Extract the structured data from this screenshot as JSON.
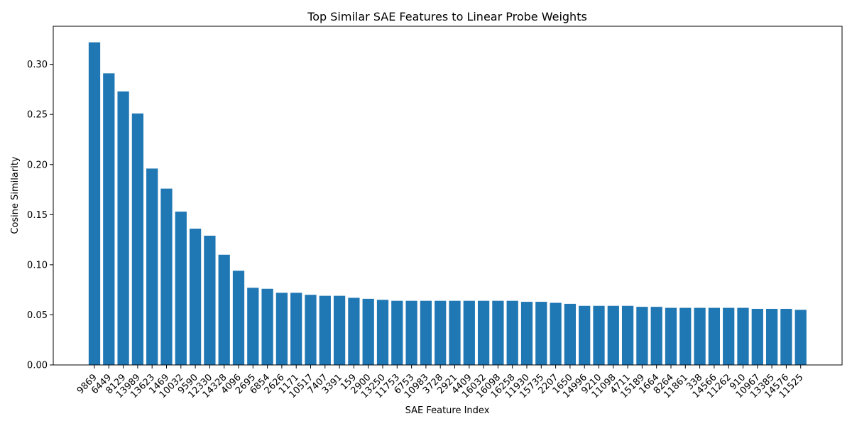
{
  "chart_data": {
    "type": "bar",
    "title": "Top Similar SAE Features to Linear Probe Weights",
    "xlabel": "SAE Feature Index",
    "ylabel": "Cosine Similarity",
    "ylim": [
      0,
      0.338
    ],
    "yticks": [
      "0.00",
      "0.05",
      "0.10",
      "0.15",
      "0.20",
      "0.25",
      "0.30"
    ],
    "grid": false,
    "bar_color": "#1f77b4",
    "categories": [
      "9869",
      "6449",
      "8129",
      "13989",
      "13623",
      "1469",
      "10032",
      "9590",
      "12330",
      "14328",
      "4096",
      "2695",
      "6854",
      "2626",
      "1171",
      "10517",
      "7407",
      "3391",
      "159",
      "2900",
      "13250",
      "11753",
      "6753",
      "10983",
      "3728",
      "2921",
      "4409",
      "16032",
      "16098",
      "16258",
      "11930",
      "15735",
      "2207",
      "1650",
      "14996",
      "9210",
      "11098",
      "4711",
      "15189",
      "1664",
      "8264",
      "11861",
      "338",
      "14566",
      "11262",
      "910",
      "10967",
      "13385",
      "14576",
      "11525"
    ],
    "values": [
      0.322,
      0.291,
      0.273,
      0.251,
      0.196,
      0.176,
      0.153,
      0.136,
      0.129,
      0.11,
      0.094,
      0.077,
      0.076,
      0.072,
      0.072,
      0.07,
      0.069,
      0.069,
      0.067,
      0.066,
      0.065,
      0.064,
      0.064,
      0.064,
      0.064,
      0.064,
      0.064,
      0.064,
      0.064,
      0.064,
      0.063,
      0.063,
      0.062,
      0.061,
      0.059,
      0.059,
      0.059,
      0.059,
      0.058,
      0.058,
      0.057,
      0.057,
      0.057,
      0.057,
      0.057,
      0.057,
      0.056,
      0.056,
      0.056,
      0.055
    ]
  }
}
